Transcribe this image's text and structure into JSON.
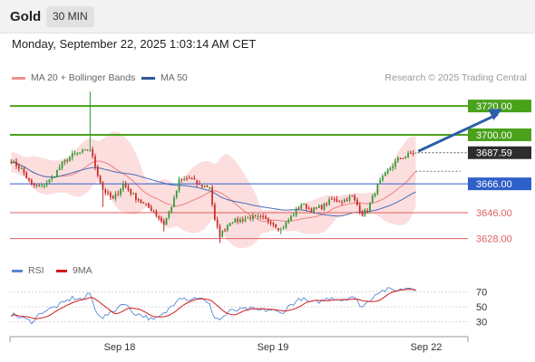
{
  "header": {
    "instrument": "Gold",
    "timeframe": "30 MIN",
    "datetime": "Monday, September 22, 2025 1:03:14 AM CET"
  },
  "legend": {
    "ma20": "MA 20 + Bollinger Bands",
    "ma50": "MA 50",
    "credit": "Research © 2025 Trading Central"
  },
  "rsi_legend": {
    "rsi": "RSI",
    "ma": "9MA"
  },
  "colors": {
    "resistance": "#4aa11a",
    "pivot": "#2f5fc9",
    "support": "#e06060",
    "candle_up": "#2e9a36",
    "candle_down": "#c72b25",
    "bollinger": "#fbd6d6",
    "ma20": "#ef7f7f",
    "ma50": "#4a6db8",
    "last_price": "#2d2d2d",
    "arrow": "#2e5ea8",
    "rsi": "#5b87d6",
    "rsi_ma": "#d11d1d"
  },
  "chart_data": {
    "type": "candlestick",
    "x_ticks": [
      "Sep 18",
      "Sep 19",
      "Sep 22"
    ],
    "y_range": [
      3619,
      3732
    ],
    "last_price": 3687.59,
    "levels": [
      {
        "label": "3720.00",
        "value": 3720.0,
        "kind": "resistance"
      },
      {
        "label": "3700.00",
        "value": 3700.0,
        "kind": "resistance"
      },
      {
        "label": "3666.00",
        "value": 3666.0,
        "kind": "pivot"
      },
      {
        "label": "3646.00",
        "value": 3646.0,
        "kind": "support"
      },
      {
        "label": "3628.00",
        "value": 3628.0,
        "kind": "support"
      }
    ],
    "price_anchors": [
      [
        0,
        3682
      ],
      [
        4,
        3676
      ],
      [
        8,
        3665
      ],
      [
        12,
        3664
      ],
      [
        16,
        3670
      ],
      [
        20,
        3680
      ],
      [
        24,
        3686
      ],
      [
        28,
        3688
      ],
      [
        31,
        3690
      ],
      [
        33,
        3678
      ],
      [
        36,
        3662
      ],
      [
        40,
        3655
      ],
      [
        44,
        3666
      ],
      [
        48,
        3658
      ],
      [
        52,
        3652
      ],
      [
        56,
        3647
      ],
      [
        60,
        3638
      ],
      [
        64,
        3655
      ],
      [
        66,
        3668
      ],
      [
        70,
        3670
      ],
      [
        74,
        3665
      ],
      [
        78,
        3664
      ],
      [
        80,
        3640
      ],
      [
        82,
        3630
      ],
      [
        86,
        3640
      ],
      [
        90,
        3641
      ],
      [
        94,
        3643
      ],
      [
        98,
        3642
      ],
      [
        102,
        3640
      ],
      [
        106,
        3634
      ],
      [
        110,
        3643
      ],
      [
        114,
        3652
      ],
      [
        118,
        3648
      ],
      [
        122,
        3650
      ],
      [
        126,
        3655
      ],
      [
        130,
        3654
      ],
      [
        134,
        3657
      ],
      [
        138,
        3645
      ],
      [
        140,
        3648
      ],
      [
        144,
        3665
      ],
      [
        148,
        3675
      ],
      [
        152,
        3683
      ],
      [
        156,
        3686
      ],
      [
        159,
        3688
      ]
    ],
    "bar_count": 160,
    "future_bars": 20,
    "projection": {
      "to_value": 3718,
      "from_bar": 160,
      "to_bar": 193
    },
    "rsi": {
      "y_range": [
        10,
        90
      ],
      "ticks": [
        70,
        50,
        30
      ],
      "anchors": [
        [
          0,
          40
        ],
        [
          5,
          34
        ],
        [
          8,
          30
        ],
        [
          12,
          43
        ],
        [
          16,
          48
        ],
        [
          20,
          54
        ],
        [
          24,
          62
        ],
        [
          28,
          60
        ],
        [
          31,
          68
        ],
        [
          33,
          45
        ],
        [
          36,
          36
        ],
        [
          40,
          43
        ],
        [
          44,
          56
        ],
        [
          48,
          42
        ],
        [
          52,
          38
        ],
        [
          56,
          32
        ],
        [
          60,
          40
        ],
        [
          64,
          55
        ],
        [
          66,
          64
        ],
        [
          70,
          60
        ],
        [
          74,
          63
        ],
        [
          78,
          52
        ],
        [
          80,
          36
        ],
        [
          82,
          33
        ],
        [
          86,
          44
        ],
        [
          90,
          46
        ],
        [
          94,
          47
        ],
        [
          98,
          45
        ],
        [
          102,
          46
        ],
        [
          106,
          41
        ],
        [
          110,
          53
        ],
        [
          114,
          61
        ],
        [
          118,
          55
        ],
        [
          122,
          58
        ],
        [
          126,
          63
        ],
        [
          130,
          59
        ],
        [
          134,
          64
        ],
        [
          138,
          50
        ],
        [
          140,
          56
        ],
        [
          144,
          70
        ],
        [
          148,
          73
        ],
        [
          152,
          72
        ],
        [
          156,
          76
        ],
        [
          159,
          74
        ]
      ]
    }
  }
}
